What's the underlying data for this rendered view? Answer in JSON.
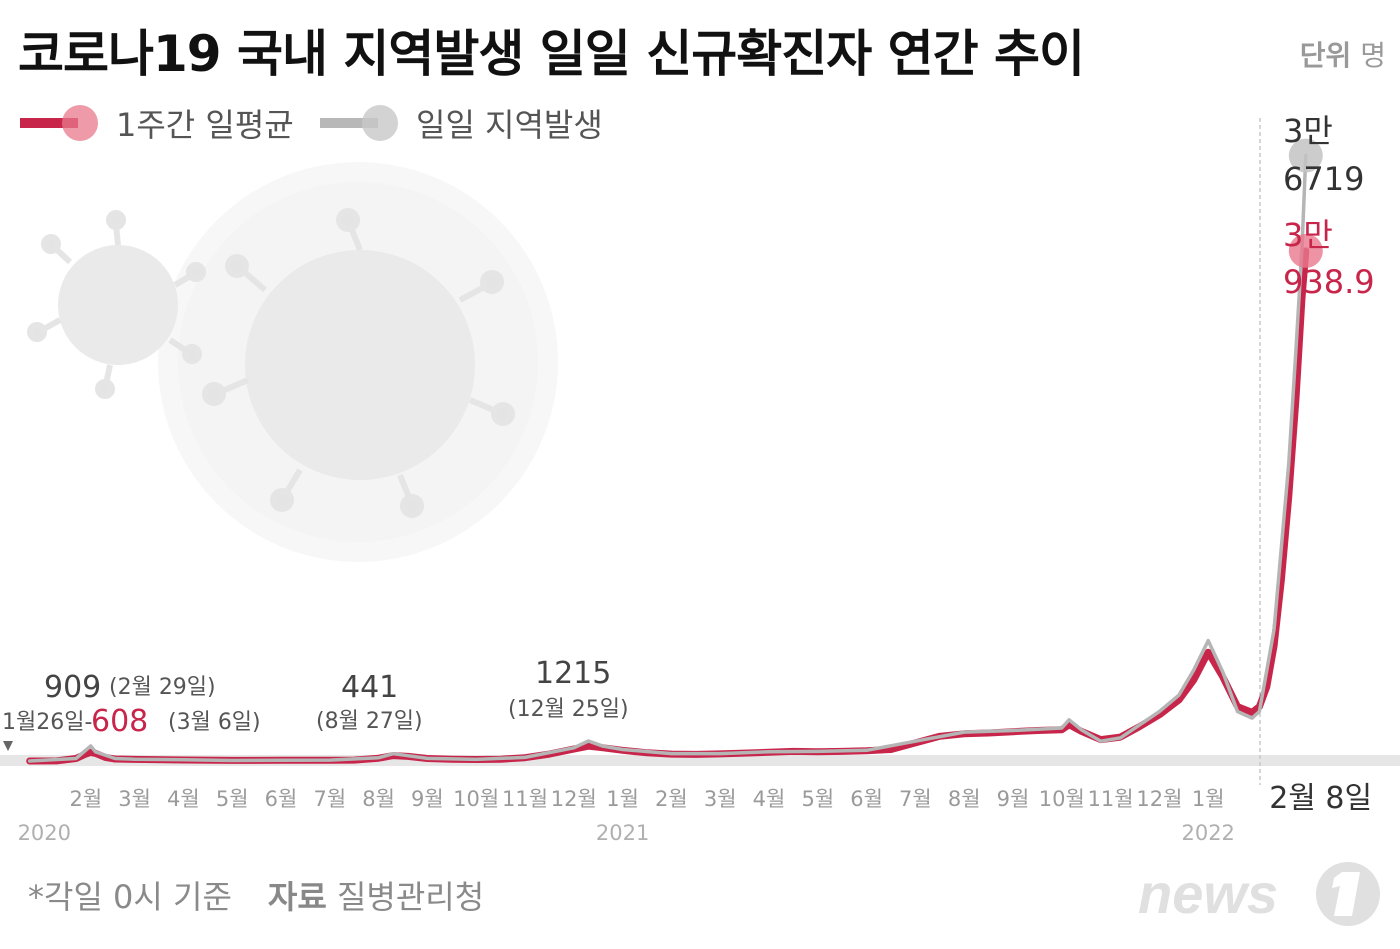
{
  "title": "코로나19 국내 지역발생 일일 신규확진자 연간 추이",
  "unit_label": "단위",
  "unit_value": "명",
  "legend": [
    {
      "label": "1주간 일평균",
      "color": "#c8254b"
    },
    {
      "label": "일일 지역발생",
      "color": "#b8b8b8"
    }
  ],
  "footer": {
    "note": "*각일 0시 기준",
    "source_label": "자료",
    "source": "질병관리청"
  },
  "logo_text": "news",
  "colors": {
    "avg": "#c8254b",
    "daily": "#b5b5b5",
    "baseline": "#e6e6e6"
  },
  "chart_data": {
    "type": "line",
    "title": "코로나19 국내 지역발생 일일 신규확진자 연간 추이",
    "x_ticks": [
      {
        "label": "2월",
        "month": 2
      },
      {
        "label": "3월",
        "month": 3
      },
      {
        "label": "4월",
        "month": 4
      },
      {
        "label": "5월",
        "month": 5
      },
      {
        "label": "6월",
        "month": 6
      },
      {
        "label": "7월",
        "month": 7
      },
      {
        "label": "8월",
        "month": 8
      },
      {
        "label": "9월",
        "month": 9
      },
      {
        "label": "10월",
        "month": 10
      },
      {
        "label": "11월",
        "month": 11
      },
      {
        "label": "12월",
        "month": 12
      },
      {
        "label": "1월",
        "month": 13
      },
      {
        "label": "2월",
        "month": 14
      },
      {
        "label": "3월",
        "month": 15
      },
      {
        "label": "4월",
        "month": 16
      },
      {
        "label": "5월",
        "month": 17
      },
      {
        "label": "6월",
        "month": 18
      },
      {
        "label": "7월",
        "month": 19
      },
      {
        "label": "8월",
        "month": 20
      },
      {
        "label": "9월",
        "month": 21
      },
      {
        "label": "10월",
        "month": 22
      },
      {
        "label": "11월",
        "month": 23
      },
      {
        "label": "12월",
        "month": 24
      },
      {
        "label": "1월",
        "month": 25
      }
    ],
    "year_labels": [
      {
        "label": "2020",
        "month": 1.15
      },
      {
        "label": "2021",
        "month": 13
      },
      {
        "label": "2022",
        "month": 25
      }
    ],
    "end_label": {
      "label": "2월 8일",
      "month": 26.25
    },
    "ylim": [
      0,
      39000
    ],
    "series": [
      {
        "name": "1주간 일평균",
        "points": [
          [
            0.85,
            0
          ],
          [
            1.4,
            5
          ],
          [
            1.8,
            150
          ],
          [
            2.0,
            420
          ],
          [
            2.1,
            520
          ],
          [
            2.2,
            460
          ],
          [
            2.4,
            220
          ],
          [
            2.6,
            120
          ],
          [
            3.0,
            100
          ],
          [
            4,
            60
          ],
          [
            5,
            35
          ],
          [
            6,
            45
          ],
          [
            7,
            50
          ],
          [
            7.5,
            55
          ],
          [
            8,
            170
          ],
          [
            8.3,
            330
          ],
          [
            8.6,
            280
          ],
          [
            9,
            150
          ],
          [
            9.5,
            110
          ],
          [
            10,
            90
          ],
          [
            10.5,
            110
          ],
          [
            11,
            200
          ],
          [
            11.5,
            420
          ],
          [
            12,
            720
          ],
          [
            12.3,
            900
          ],
          [
            12.6,
            800
          ],
          [
            13,
            650
          ],
          [
            13.5,
            500
          ],
          [
            14,
            420
          ],
          [
            14.5,
            400
          ],
          [
            15,
            430
          ],
          [
            15.5,
            480
          ],
          [
            16,
            530
          ],
          [
            16.5,
            580
          ],
          [
            17,
            560
          ],
          [
            17.5,
            580
          ],
          [
            18,
            620
          ],
          [
            18.5,
            700
          ],
          [
            19,
            1100
          ],
          [
            19.5,
            1500
          ],
          [
            20,
            1650
          ],
          [
            20.5,
            1700
          ],
          [
            21,
            1780
          ],
          [
            21.5,
            1850
          ],
          [
            22,
            1900
          ],
          [
            22.15,
            2200
          ],
          [
            22.4,
            1800
          ],
          [
            22.8,
            1300
          ],
          [
            23.2,
            1450
          ],
          [
            23.6,
            2100
          ],
          [
            24,
            2800
          ],
          [
            24.4,
            3700
          ],
          [
            24.7,
            4900
          ],
          [
            25.0,
            6600
          ],
          [
            25.3,
            5100
          ],
          [
            25.6,
            3300
          ],
          [
            25.9,
            2950
          ],
          [
            26.05,
            3300
          ],
          [
            26.2,
            4500
          ],
          [
            26.35,
            7000
          ],
          [
            26.5,
            11000
          ],
          [
            26.65,
            16000
          ],
          [
            26.8,
            22000
          ],
          [
            26.92,
            28000
          ],
          [
            27.0,
            30938.9
          ]
        ]
      },
      {
        "name": "일일 지역발생",
        "points": [
          [
            0.85,
            0
          ],
          [
            1.8,
            150
          ],
          [
            2.1,
            909
          ],
          [
            2.2,
            550
          ],
          [
            2.6,
            150
          ],
          [
            3.0,
            110
          ],
          [
            4,
            70
          ],
          [
            5,
            30
          ],
          [
            6,
            50
          ],
          [
            7,
            55
          ],
          [
            8,
            200
          ],
          [
            8.3,
            441
          ],
          [
            8.6,
            320
          ],
          [
            9,
            160
          ],
          [
            10,
            100
          ],
          [
            11,
            220
          ],
          [
            12,
            800
          ],
          [
            12.3,
            1215
          ],
          [
            12.6,
            900
          ],
          [
            13,
            700
          ],
          [
            14,
            450
          ],
          [
            15,
            450
          ],
          [
            16,
            560
          ],
          [
            17,
            580
          ],
          [
            18,
            650
          ],
          [
            19,
            1200
          ],
          [
            20,
            1750
          ],
          [
            21,
            1850
          ],
          [
            22,
            2000
          ],
          [
            22.15,
            2500
          ],
          [
            22.4,
            1900
          ],
          [
            22.8,
            1200
          ],
          [
            23.2,
            1400
          ],
          [
            23.6,
            2200
          ],
          [
            24,
            3000
          ],
          [
            24.4,
            4000
          ],
          [
            24.7,
            5500
          ],
          [
            25.0,
            7300
          ],
          [
            25.3,
            5400
          ],
          [
            25.6,
            3000
          ],
          [
            25.9,
            2600
          ],
          [
            26.05,
            3000
          ],
          [
            26.2,
            5500
          ],
          [
            26.35,
            8000
          ],
          [
            26.5,
            13000
          ],
          [
            26.65,
            18000
          ],
          [
            26.8,
            25000
          ],
          [
            26.92,
            31000
          ],
          [
            27.0,
            36719
          ]
        ]
      }
    ],
    "annotations": [
      {
        "label": "1월26일",
        "month": 0.85,
        "value": 0
      },
      {
        "label": "909",
        "sub": "(2월 29일)",
        "month": 2.1,
        "value": 909
      },
      {
        "label": "608",
        "sub": "(3월 6일)",
        "month": 2.3,
        "value": 608
      },
      {
        "label": "441",
        "sub": "(8월 27일)",
        "month": 8.3,
        "value": 441
      },
      {
        "label": "1215",
        "sub": "(12월 25일)",
        "month": 12.3,
        "value": 1215
      },
      {
        "label": "3만 6719",
        "month": 27.0,
        "value": 36719
      },
      {
        "label": "3만 938.9",
        "month": 27.0,
        "value": 30938.9
      }
    ],
    "last_values": {
      "daily_line1": "3만",
      "daily_line2": "6719",
      "avg_line1": "3만",
      "avg_line2": "938.9"
    },
    "peak_labels": {
      "p1_value": "909",
      "p1_date": "(2월 29일)",
      "start": "1월26일-",
      "p2_value": "608",
      "p2_date": "(3월 6일)",
      "p3_value": "441",
      "p3_date": "(8월 27일)",
      "p4_value": "1215",
      "p4_date": "(12월 25일)"
    }
  }
}
